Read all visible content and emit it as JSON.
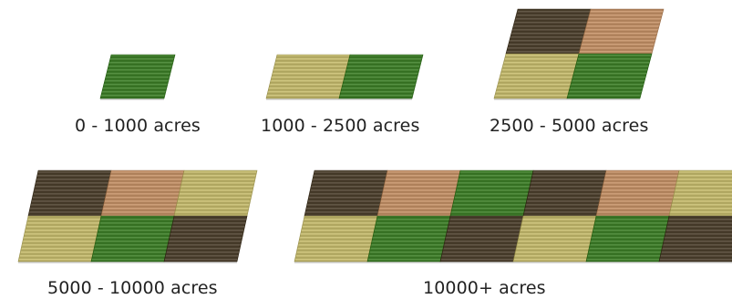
{
  "palette": {
    "green": "#3f7a2c",
    "tan": "#b9b06a",
    "dark_soil": "#4d4231",
    "light_soil": "#b88a64"
  },
  "tiers": [
    {
      "label": "0 - 1000 acres",
      "rows": [
        [
          "green"
        ]
      ]
    },
    {
      "label": "1000 - 2500 acres",
      "rows": [
        [
          "tan",
          "green"
        ]
      ]
    },
    {
      "label": "2500 - 5000 acres",
      "rows": [
        [
          "dark_soil",
          "light_soil"
        ],
        [
          "tan",
          "green"
        ]
      ]
    },
    {
      "label": "5000 - 10000 acres",
      "rows": [
        [
          "dark_soil",
          "light_soil",
          "tan"
        ],
        [
          "tan",
          "green",
          "dark_soil"
        ]
      ]
    },
    {
      "label": "10000+ acres",
      "rows": [
        [
          "dark_soil",
          "light_soil",
          "green",
          "dark_soil",
          "light_soil",
          "tan"
        ],
        [
          "tan",
          "green",
          "dark_soil",
          "tan",
          "green",
          "dark_soil"
        ]
      ]
    }
  ]
}
